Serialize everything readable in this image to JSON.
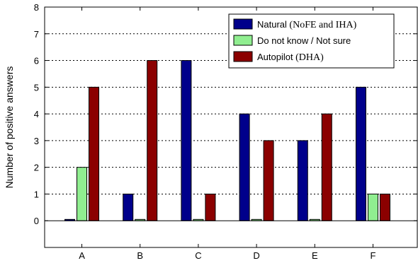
{
  "chart_data": {
    "type": "bar",
    "title": "",
    "xlabel": "",
    "ylabel": "Number of positive answers",
    "categories": [
      "A",
      "B",
      "C",
      "D",
      "E",
      "F"
    ],
    "ylim": [
      -1,
      8
    ],
    "yticks": [
      0,
      1,
      2,
      3,
      4,
      5,
      6,
      7,
      8
    ],
    "grid": "horizontal dashed",
    "legend_position": "top-right",
    "series": [
      {
        "name": "Natural",
        "name_suffix": "(NoFE and IHA)",
        "color": "#00008b",
        "values": [
          0.05,
          1,
          6,
          4,
          3,
          5
        ]
      },
      {
        "name": "Do not know / Not sure",
        "name_suffix": "",
        "color": "#90ee90",
        "values": [
          2,
          0.05,
          0.05,
          0.05,
          0.05,
          1
        ]
      },
      {
        "name": "Autopilot",
        "name_suffix": "(DHA)",
        "color": "#8b0000",
        "values": [
          5,
          6,
          1,
          3,
          4,
          1
        ]
      }
    ]
  }
}
